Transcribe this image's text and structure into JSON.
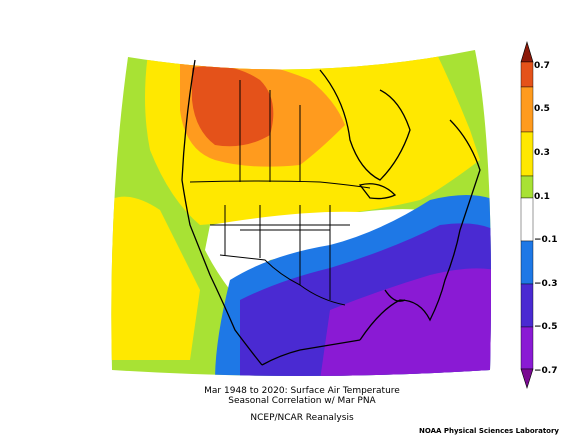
{
  "map": {
    "caption_line1": "Mar 1948 to 2020: Surface Air Temperature",
    "caption_line2": "Seasonal Correlation w/ Mar PNA",
    "source": "NCEP/NCAR Reanalysis",
    "credit": "NOAA Physical Sciences Laboratory",
    "region": "North America",
    "colorbar": {
      "labels": [
        "0.7",
        "0.5",
        "0.3",
        "0.1",
        "−0.1",
        "−0.3",
        "−0.5",
        "−0.7"
      ],
      "colors": [
        "#8c1a0a",
        "#e4521a",
        "#ff9b1e",
        "#ffe800",
        "#a8e234",
        "#ffffff",
        "#1e78e6",
        "#4a2ad2",
        "#8a1ad4",
        "#7a0a92"
      ]
    },
    "field_colors": {
      "dark_orange": "#e4521a",
      "orange": "#ff9b1e",
      "yellow": "#ffe800",
      "light_green": "#a8e234",
      "white": "#ffffff",
      "light_blue": "#1e78e6",
      "purple": "#4a2ad2",
      "dark_purple": "#8a1ad4"
    }
  }
}
